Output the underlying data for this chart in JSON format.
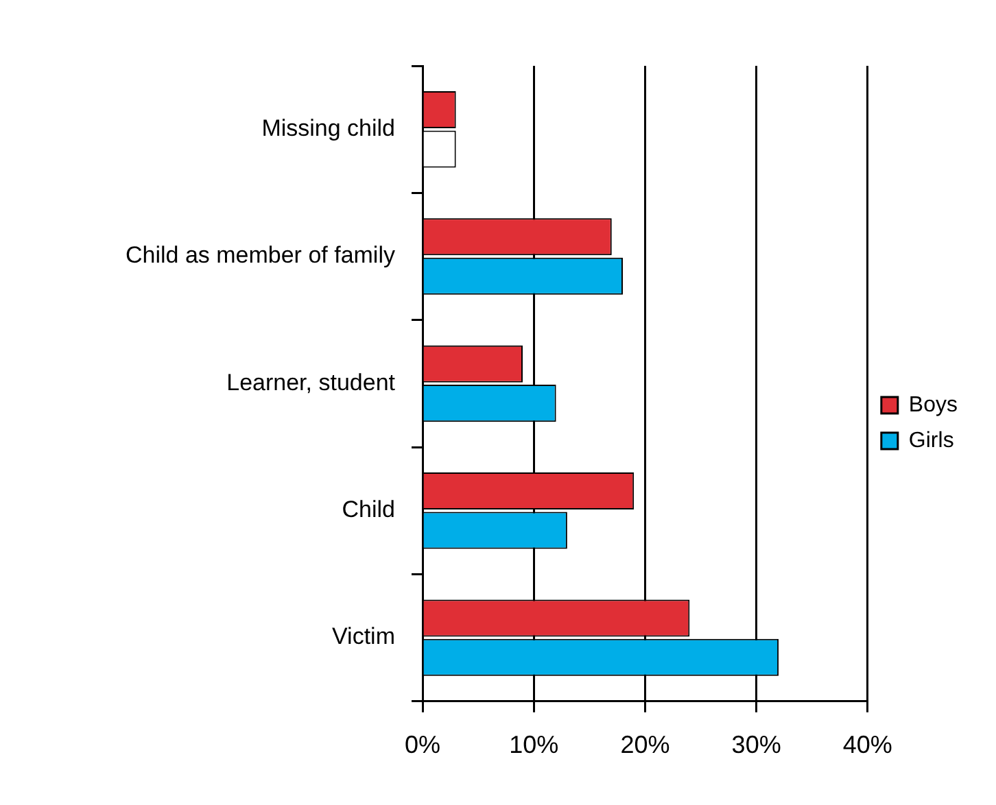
{
  "chart_data": {
    "type": "bar",
    "orientation": "horizontal",
    "categories": [
      "Missing child",
      "Child as member of family",
      "Learner, student",
      "Child",
      "Victim"
    ],
    "series": [
      {
        "name": "Boys",
        "color": "#e02f36",
        "values": [
          3,
          17,
          9,
          19,
          24
        ]
      },
      {
        "name": "Girls",
        "color": "#00aee8",
        "colors": [
          "#ffffff",
          "#00aee8",
          "#00aee8",
          "#00aee8",
          "#00aee8"
        ],
        "values": [
          3,
          18,
          12,
          13,
          32
        ]
      }
    ],
    "xlim": [
      0,
      40
    ],
    "xticks": [
      {
        "value": 0,
        "label": "0%"
      },
      {
        "value": 10,
        "label": "10%"
      },
      {
        "value": 20,
        "label": "20%"
      },
      {
        "value": 30,
        "label": "30%"
      },
      {
        "value": 40,
        "label": "40%"
      }
    ],
    "grid": "x",
    "legend": "right"
  }
}
